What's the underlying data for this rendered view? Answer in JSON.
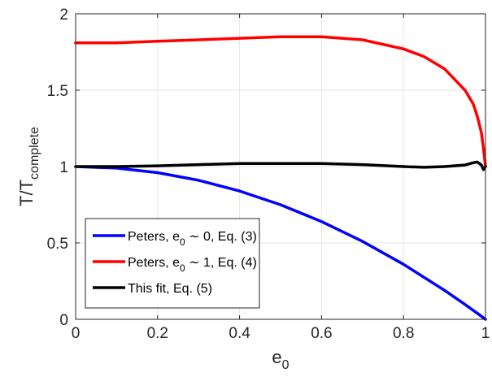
{
  "chart_data": {
    "type": "line",
    "title": "",
    "xlabel": {
      "base": "e",
      "sub": "0"
    },
    "ylabel": {
      "base": "T/T",
      "sub": "complete"
    },
    "xlim": [
      0,
      1
    ],
    "ylim": [
      0,
      2
    ],
    "xticks": [
      0,
      0.2,
      0.4,
      0.6,
      0.8,
      1
    ],
    "yticks": [
      0,
      0.5,
      1,
      1.5,
      2
    ],
    "xtick_labels": [
      "0",
      "0.2",
      "0.4",
      "0.6",
      "0.8",
      "1"
    ],
    "ytick_labels": [
      "0",
      "0.5",
      "1",
      "1.5",
      "2"
    ],
    "grid": true,
    "legend_position": "bottom-left",
    "series": [
      {
        "name": "Peters, e0 ~ 0, Eq. (3)",
        "legend_parts": [
          "Peters, e",
          "0",
          " ∼ 0, Eq. (3)"
        ],
        "color": "#0000ff",
        "x": [
          0,
          0.1,
          0.2,
          0.3,
          0.4,
          0.5,
          0.6,
          0.7,
          0.8,
          0.9,
          0.95,
          0.98,
          0.99,
          1.0
        ],
        "y": [
          1.0,
          0.99,
          0.96,
          0.91,
          0.84,
          0.75,
          0.64,
          0.51,
          0.36,
          0.19,
          0.0975,
          0.0396,
          0.0199,
          0.0
        ]
      },
      {
        "name": "Peters, e0 ~ 1, Eq. (4)",
        "legend_parts": [
          "Peters, e",
          "0",
          " ∼ 1, Eq. (4)"
        ],
        "color": "#ff0000",
        "x": [
          0,
          0.1,
          0.2,
          0.3,
          0.4,
          0.5,
          0.6,
          0.7,
          0.8,
          0.85,
          0.9,
          0.95,
          0.97,
          0.98,
          0.99,
          0.995,
          1.0
        ],
        "y": [
          1.81,
          1.81,
          1.82,
          1.83,
          1.84,
          1.85,
          1.85,
          1.83,
          1.77,
          1.72,
          1.64,
          1.5,
          1.41,
          1.33,
          1.22,
          1.12,
          1.0
        ]
      },
      {
        "name": "This fit, Eq. (5)",
        "legend_parts": [
          "This fit, Eq. (5)",
          "",
          ""
        ],
        "color": "#000000",
        "x": [
          0,
          0.1,
          0.2,
          0.3,
          0.4,
          0.5,
          0.6,
          0.7,
          0.8,
          0.85,
          0.9,
          0.95,
          0.97,
          0.98,
          0.99,
          0.995,
          1.0
        ],
        "y": [
          1.0,
          1.0,
          1.005,
          1.013,
          1.02,
          1.02,
          1.02,
          1.013,
          1.0,
          0.995,
          1.0,
          1.01,
          1.025,
          1.03,
          1.01,
          0.98,
          1.0
        ]
      }
    ]
  }
}
